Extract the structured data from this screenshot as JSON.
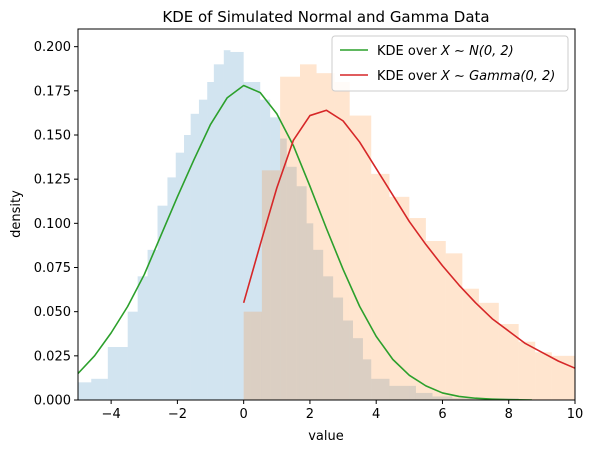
{
  "chart_data": {
    "type": "line",
    "title": "KDE of Simulated Normal and Gamma Data",
    "xlabel": "value",
    "ylabel": "density",
    "xlim": [
      -5,
      10
    ],
    "ylim": [
      0,
      0.21
    ],
    "xticks": [
      -4,
      -2,
      0,
      2,
      4,
      6,
      8,
      10
    ],
    "xtick_labels": [
      "−4",
      "−2",
      "0",
      "2",
      "4",
      "6",
      "8",
      "10"
    ],
    "yticks": [
      0,
      0.025,
      0.05,
      0.075,
      0.1,
      0.125,
      0.15,
      0.175,
      0.2
    ],
    "ytick_labels": [
      "0.000",
      "0.025",
      "0.050",
      "0.075",
      "0.100",
      "0.125",
      "0.150",
      "0.175",
      "0.200"
    ],
    "grid": false,
    "legend_position": "top-right",
    "histograms": [
      {
        "name": "normal-histogram",
        "color": "#1f77b4",
        "opacity": 0.2,
        "bin_edges": [
          -5.0,
          -4.6,
          -4.1,
          -3.5,
          -3.2,
          -2.9,
          -2.6,
          -2.3,
          -2.05,
          -1.8,
          -1.6,
          -1.35,
          -1.1,
          -0.9,
          -0.6,
          -0.4,
          0.0,
          0.2,
          0.5,
          0.8,
          1.1,
          1.3,
          1.6,
          1.9,
          2.1,
          2.4,
          2.7,
          3.0,
          3.3,
          3.6,
          3.85,
          4.4,
          5.2,
          5.7,
          6.3,
          8.3
        ],
        "values": [
          0.01,
          0.012,
          0.03,
          0.05,
          0.07,
          0.085,
          0.11,
          0.126,
          0.14,
          0.15,
          0.162,
          0.17,
          0.18,
          0.19,
          0.198,
          0.197,
          0.18,
          0.18,
          0.17,
          0.16,
          0.148,
          0.132,
          0.121,
          0.1,
          0.085,
          0.07,
          0.058,
          0.045,
          0.035,
          0.023,
          0.012,
          0.008,
          0.004,
          0.002,
          0.001
        ]
      },
      {
        "name": "gamma-histogram",
        "color": "#ff7f0e",
        "opacity": 0.2,
        "bin_edges": [
          0.0,
          0.55,
          1.1,
          1.7,
          2.2,
          2.75,
          3.2,
          3.85,
          4.4,
          5.0,
          5.5,
          6.1,
          6.6,
          7.1,
          7.7,
          8.3,
          8.8,
          9.3,
          10.0
        ],
        "values": [
          0.05,
          0.13,
          0.183,
          0.19,
          0.185,
          0.18,
          0.161,
          0.128,
          0.115,
          0.103,
          0.09,
          0.083,
          0.063,
          0.055,
          0.043,
          0.033,
          0.027,
          0.025
        ]
      }
    ],
    "series": [
      {
        "name": "KDE over $X \\sim N(0, 2)$",
        "legend_prefix": "KDE over ",
        "legend_math": "X ∼ N(0, 2)",
        "color": "#2ca02c",
        "x": [
          -5,
          -4.5,
          -4,
          -3.5,
          -3,
          -2.5,
          -2,
          -1.5,
          -1,
          -0.5,
          0,
          0.5,
          1,
          1.5,
          2,
          2.5,
          3,
          3.5,
          4,
          4.5,
          5,
          5.5,
          6,
          6.5,
          7,
          7.5,
          8,
          8.7
        ],
        "y": [
          0.015,
          0.025,
          0.038,
          0.053,
          0.071,
          0.093,
          0.115,
          0.136,
          0.156,
          0.171,
          0.178,
          0.174,
          0.162,
          0.144,
          0.121,
          0.097,
          0.074,
          0.053,
          0.036,
          0.023,
          0.014,
          0.008,
          0.004,
          0.002,
          0.001,
          0.0005,
          0.0002,
          0.0
        ]
      },
      {
        "name": "KDE over $X \\sim Gamma(0, 2)$",
        "legend_prefix": "KDE over ",
        "legend_math": "X ∼ Gamma(0, 2)",
        "color": "#d62728",
        "x": [
          0,
          0.5,
          1,
          1.5,
          2,
          2.5,
          3,
          3.5,
          4,
          4.5,
          5,
          5.5,
          6,
          6.5,
          7,
          7.5,
          8,
          8.5,
          9,
          9.5,
          10
        ],
        "y": [
          0.055,
          0.088,
          0.12,
          0.147,
          0.161,
          0.164,
          0.158,
          0.146,
          0.131,
          0.116,
          0.101,
          0.088,
          0.076,
          0.065,
          0.055,
          0.046,
          0.039,
          0.032,
          0.027,
          0.022,
          0.018
        ]
      }
    ]
  }
}
